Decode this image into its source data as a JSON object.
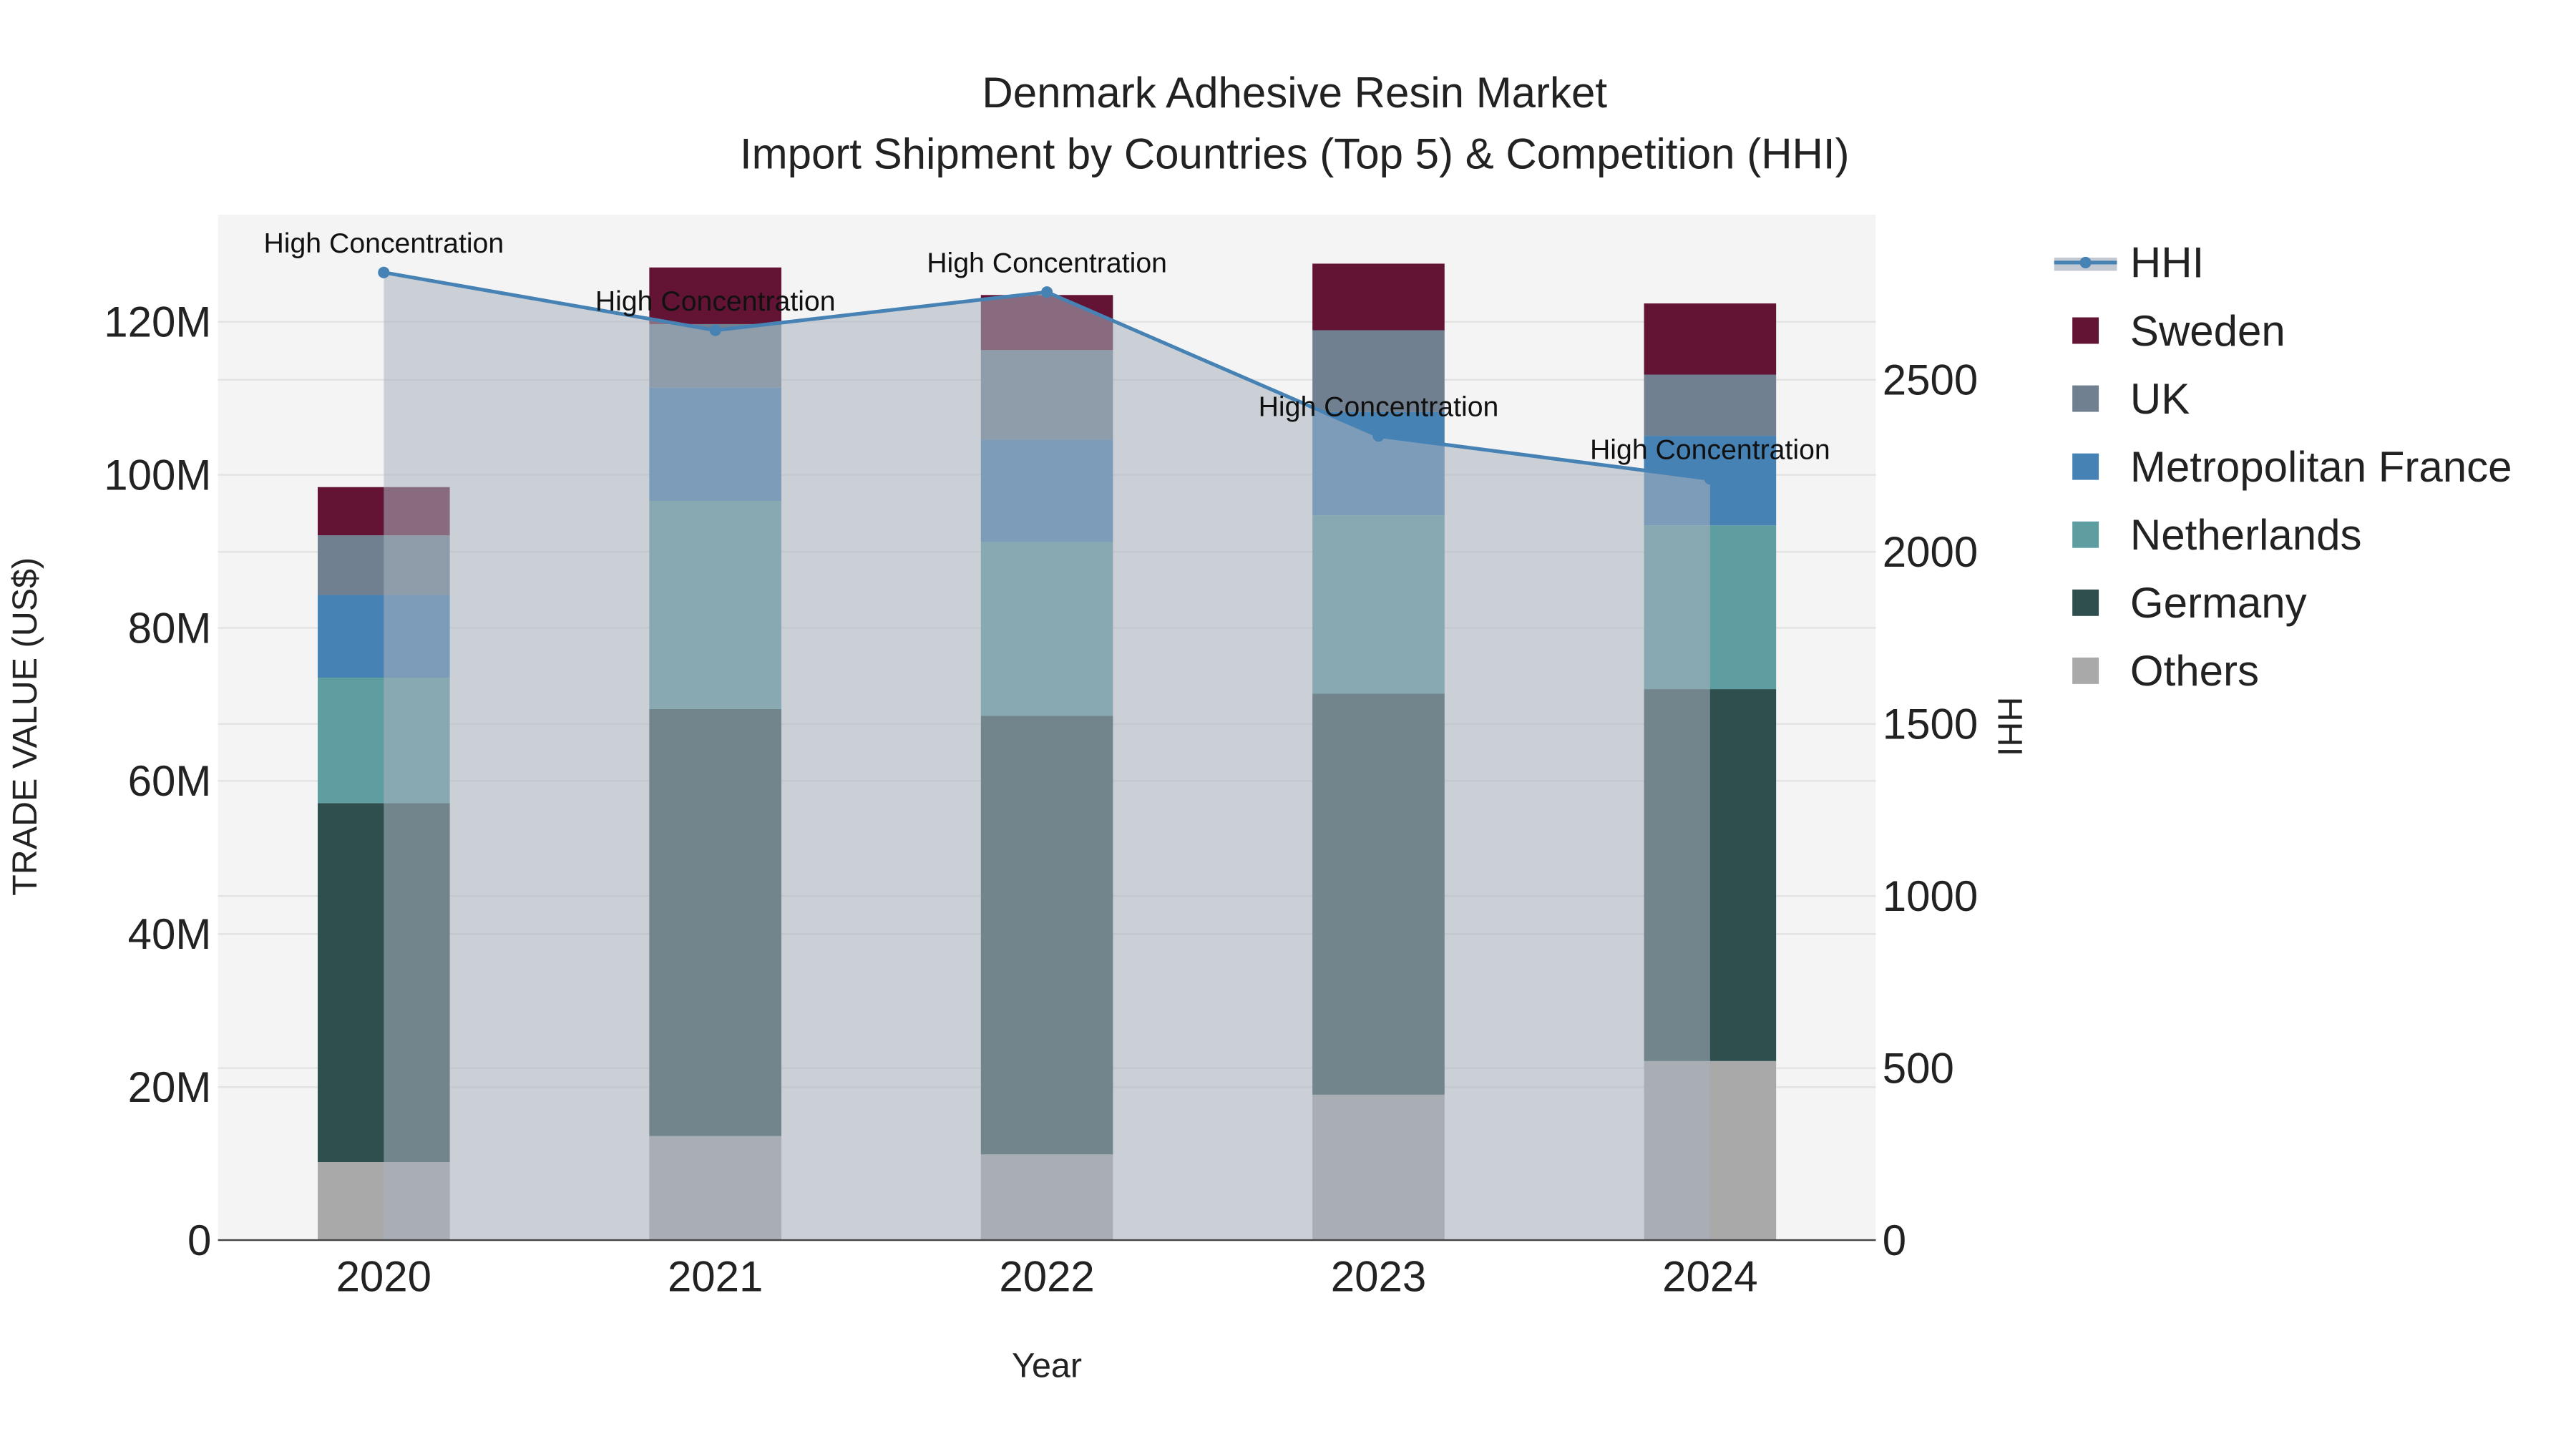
{
  "chart_data": {
    "type": "bar",
    "title": "Denmark Adhesive Resin Market",
    "subtitle": "Import Shipment by Countries (Top 5) & Competition (HHI)",
    "xlabel": "Year",
    "ylabel": "TRADE VALUE (US$)",
    "y2label": "HHI",
    "categories": [
      "2020",
      "2021",
      "2022",
      "2023",
      "2024"
    ],
    "ylim": [
      0,
      134000000
    ],
    "y2lim": [
      0,
      2980
    ],
    "yticks": [
      0,
      20000000,
      40000000,
      60000000,
      80000000,
      100000000,
      120000000
    ],
    "ytick_labels": [
      "0",
      "20M",
      "40M",
      "60M",
      "80M",
      "100M",
      "120M"
    ],
    "y2ticks": [
      0,
      500,
      1000,
      1500,
      2000,
      2500
    ],
    "y2tick_labels": [
      "0",
      "500",
      "1000",
      "1500",
      "2000",
      "2500"
    ],
    "grid": true,
    "stacked": true,
    "legend_position": "right",
    "series": [
      {
        "name": "Others",
        "color": "#a9a9a9",
        "values": [
          10200000,
          13600000,
          11200000,
          19000000,
          23400000
        ]
      },
      {
        "name": "Germany",
        "color": "#2f4f4f",
        "values": [
          46900000,
          55800000,
          57300000,
          52400000,
          48600000
        ]
      },
      {
        "name": "Netherlands",
        "color": "#5f9ea0",
        "values": [
          16400000,
          27200000,
          22700000,
          23300000,
          21400000
        ]
      },
      {
        "name": "Metropolitan France",
        "color": "#4682b4",
        "values": [
          10800000,
          14800000,
          13400000,
          13500000,
          11700000
        ]
      },
      {
        "name": "UK",
        "color": "#708090",
        "values": [
          7800000,
          8300000,
          11700000,
          10700000,
          8000000
        ]
      },
      {
        "name": "Sweden",
        "color": "#631434",
        "values": [
          6300000,
          7400000,
          7200000,
          8700000,
          9300000
        ]
      }
    ],
    "hhi": {
      "name": "HHI",
      "color": "#4682b4",
      "values": [
        2812,
        2644,
        2755,
        2337,
        2212
      ],
      "annotations": [
        "High Concentration",
        "High Concentration",
        "High Concentration",
        "High Concentration",
        "High Concentration"
      ]
    },
    "legend": [
      "HHI",
      "Sweden",
      "UK",
      "Metropolitan France",
      "Netherlands",
      "Germany",
      "Others"
    ]
  }
}
